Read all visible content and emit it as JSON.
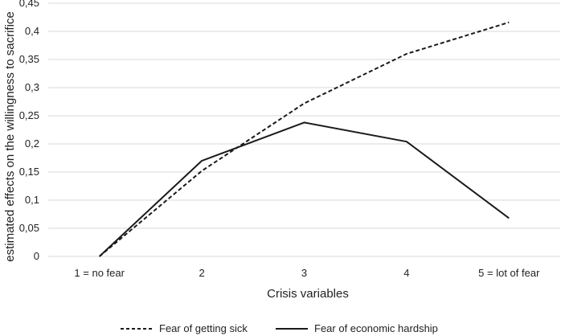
{
  "chart_data": {
    "type": "line",
    "title": "",
    "xlabel": "Crisis variables",
    "ylabel": "estimated effects on the willingness to sacrifice",
    "categories": [
      "1 = no fear",
      "2",
      "3",
      "4",
      "5 = lot of fear"
    ],
    "ylim": [
      0,
      0.45
    ],
    "ytick_values": [
      0,
      0.05,
      0.1,
      0.15,
      0.2,
      0.25,
      0.3,
      0.35,
      0.4,
      0.45
    ],
    "ytick_labels": [
      "0",
      "0,05",
      "0,1",
      "0,15",
      "0,2",
      "0,25",
      "0,3",
      "0,35",
      "0,4",
      "0,45"
    ],
    "grid": true,
    "legend_position": "bottom",
    "series": [
      {
        "name": "Fear of getting sick",
        "values": [
          0,
          0.152,
          0.272,
          0.36,
          0.416
        ],
        "style": "dashed",
        "color": "#1a1a1a"
      },
      {
        "name": "Fear of economic hardship",
        "values": [
          0,
          0.17,
          0.238,
          0.204,
          0.068
        ],
        "style": "solid",
        "color": "#1a1a1a"
      }
    ]
  }
}
